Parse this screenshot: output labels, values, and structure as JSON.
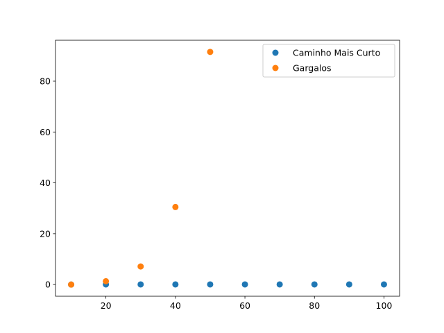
{
  "chart_data": {
    "type": "scatter",
    "title": "",
    "xlabel": "",
    "ylabel": "",
    "xlim": [
      5.5,
      104.5
    ],
    "ylim": [
      -4.6,
      96.1
    ],
    "xticks": [
      20,
      40,
      60,
      80,
      100
    ],
    "yticks": [
      0,
      20,
      40,
      60,
      80
    ],
    "grid": false,
    "legend_position": "upper right",
    "series": [
      {
        "name": "Caminho Mais Curto",
        "color": "#1f77b4",
        "x": [
          10,
          20,
          30,
          40,
          50,
          60,
          70,
          80,
          90,
          100
        ],
        "y": [
          0.0,
          0.05,
          0.05,
          0.05,
          0.05,
          0.05,
          0.05,
          0.05,
          0.05,
          0.05
        ]
      },
      {
        "name": "Gargalos",
        "color": "#ff7f0e",
        "x": [
          10,
          20,
          30,
          40,
          50
        ],
        "y": [
          0.0,
          1.3,
          7.1,
          30.5,
          91.5
        ]
      }
    ]
  }
}
